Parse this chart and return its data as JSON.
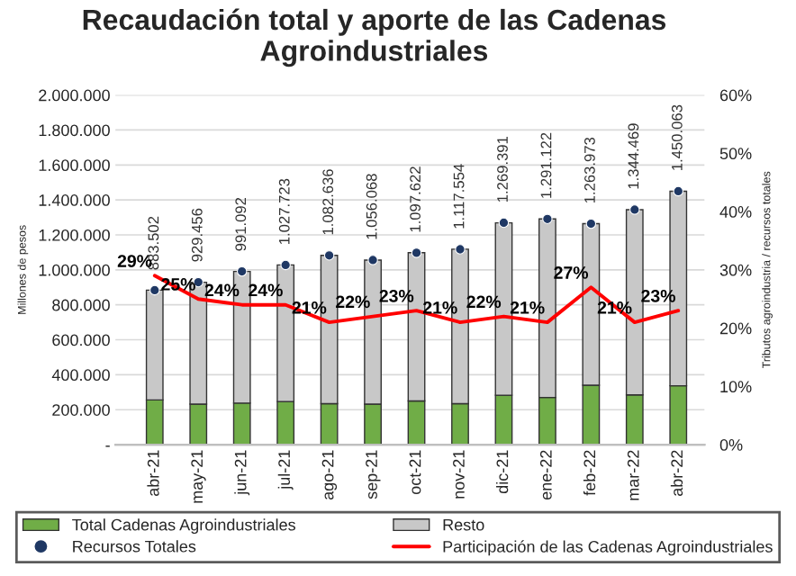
{
  "chart_data": {
    "type": "bar",
    "title": "Recaudación total y aporte de las Cadenas Agroindustriales",
    "ylabel": "Millones de pesos",
    "y2label": "Tributos agroindustria / recursos totales",
    "categories": [
      "abr-21",
      "may-21",
      "jun-21",
      "jul-21",
      "ago-21",
      "sep-21",
      "oct-21",
      "nov-21",
      "dic-21",
      "ene-22",
      "feb-22",
      "mar-22",
      "abr-22"
    ],
    "stacked": true,
    "series": [
      {
        "name": "Total Cadenas Agroindustriales",
        "type": "bar",
        "color": "#70ad47",
        "values": [
          256000,
          232000,
          238000,
          247000,
          235000,
          232000,
          250000,
          235000,
          283000,
          270000,
          340000,
          285000,
          337000
        ]
      },
      {
        "name": "Resto",
        "type": "bar",
        "color": "#c8c8c8",
        "values": [
          628000,
          697000,
          753000,
          781000,
          848000,
          824000,
          848000,
          883000,
          986000,
          1021000,
          924000,
          1059000,
          1113000
        ]
      },
      {
        "name": "Recursos Totales",
        "type": "scatter",
        "color": "#1f3864",
        "values": [
          883502,
          929456,
          991092,
          1027723,
          1082636,
          1056068,
          1097622,
          1117554,
          1269391,
          1291122,
          1263973,
          1344469,
          1450063
        ],
        "value_labels": [
          "883.502",
          "929.456",
          "991.092",
          "1.027.723",
          "1.082.636",
          "1.056.068",
          "1.097.622",
          "1.117.554",
          "1.269.391",
          "1.291.122",
          "1.263.973",
          "1.344.469",
          "1.450.063"
        ]
      },
      {
        "name": "Participación de las Cadenas Agroindustriales",
        "type": "line",
        "axis": "y2",
        "color": "#ff0000",
        "values": [
          29,
          25,
          24,
          24,
          21,
          22,
          23,
          21,
          22,
          21,
          27,
          21,
          23
        ],
        "value_labels": [
          "29%",
          "25%",
          "24%",
          "24%",
          "21%",
          "22%",
          "23%",
          "21%",
          "22%",
          "21%",
          "27%",
          "21%",
          "23%"
        ]
      }
    ],
    "ylim": [
      0,
      2000000
    ],
    "yticks": [
      {
        "value": 0,
        "label": "-"
      },
      {
        "value": 200000,
        "label": "200.000"
      },
      {
        "value": 400000,
        "label": "400.000"
      },
      {
        "value": 600000,
        "label": "600.000"
      },
      {
        "value": 800000,
        "label": "800.000"
      },
      {
        "value": 1000000,
        "label": "1.000.000"
      },
      {
        "value": 1200000,
        "label": "1.200.000"
      },
      {
        "value": 1400000,
        "label": "1.400.000"
      },
      {
        "value": 1600000,
        "label": "1.600.000"
      },
      {
        "value": 1800000,
        "label": "1.800.000"
      },
      {
        "value": 2000000,
        "label": "2.000.000"
      }
    ],
    "y2lim": [
      0,
      60
    ],
    "y2ticks": [
      {
        "value": 0,
        "label": "0%"
      },
      {
        "value": 10,
        "label": "10%"
      },
      {
        "value": 20,
        "label": "20%"
      },
      {
        "value": 30,
        "label": "30%"
      },
      {
        "value": 40,
        "label": "40%"
      },
      {
        "value": 50,
        "label": "50%"
      },
      {
        "value": 60,
        "label": "60%"
      }
    ],
    "grid": "y",
    "legend": "bottom"
  }
}
